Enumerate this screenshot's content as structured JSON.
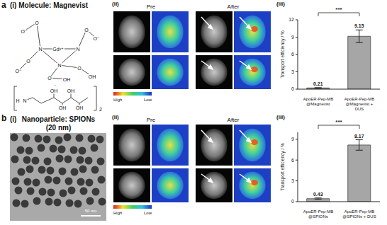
{
  "panels": [
    {
      "letter": "a",
      "i": {
        "label": "(i)",
        "title": "Molecule: Magnevist",
        "structure_labels": [
          "O⁻",
          "O",
          "N",
          "Gd³⁺",
          "N",
          "O",
          "O⁻",
          "N",
          "O",
          "O⁻",
          "O",
          "OH",
          "O",
          "OH",
          "·",
          "H",
          "N",
          "OH",
          "OH",
          "OH",
          "OH",
          "2"
        ]
      },
      "ii": {
        "label": "(ii)",
        "columns": [
          "Pre",
          "After"
        ],
        "colorbar": [
          "High",
          "Low"
        ]
      },
      "iii": {
        "label": "(iii)"
      }
    },
    {
      "letter": "b",
      "i": {
        "label": "(i)",
        "title": "Nanoparticle: SPIONs (20 nm)",
        "scale_bar": "50 nm"
      },
      "ii": {
        "label": "(ii)",
        "columns": [
          "Pre",
          "After"
        ],
        "colorbar": [
          "High",
          "Low"
        ]
      },
      "iii": {
        "label": "(iii)"
      }
    }
  ],
  "chart_data": [
    {
      "type": "bar",
      "categories": [
        "ApoER-Pep-MB @Magnevist",
        "ApoER-Pep-MB @Magnevist + DUS"
      ],
      "values": [
        0.21,
        9.15
      ],
      "errors": [
        0.05,
        1.1
      ],
      "data_labels": true,
      "color": "#a6a6a6",
      "y_label": "Transport efficiency / %",
      "ylim": [
        0,
        12
      ],
      "yticks": [
        0,
        3,
        6,
        9,
        12
      ],
      "significance": "***"
    },
    {
      "type": "bar",
      "categories": [
        "ApoER-Pep-MB @SPIONs",
        "ApoER-Pep-MB @SPIONs + DUS"
      ],
      "values": [
        0.43,
        8.17
      ],
      "errors": [
        0.1,
        0.75
      ],
      "data_labels": true,
      "color": "#a6a6a6",
      "y_label": "Transport efficiency / %",
      "ylim": [
        0,
        10
      ],
      "yticks": [
        0,
        3,
        6,
        9
      ],
      "significance": "***"
    }
  ]
}
